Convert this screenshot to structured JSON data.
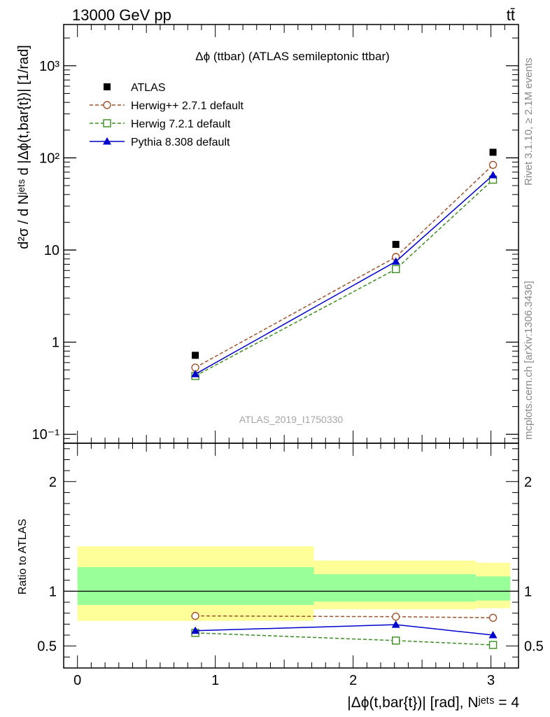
{
  "header": {
    "energy_label": "13000 GeV pp",
    "process_label": "tt̄"
  },
  "side_labels": {
    "rivet": "Rivet 3.1.10, ≥ 2.1M events",
    "mcplots": "mcplots.cern.ch [arXiv:1306.3436]"
  },
  "chart_data": [
    {
      "type": "line",
      "title": "Δϕ (ttbar) (ATLAS semileptonic ttbar)",
      "watermark": "ATLAS_2019_I1750330",
      "ylabel": "d²σ / d Nʲᵉᵗˢ d |Δϕ(t,bar{t})| [1/rad]",
      "yscale": "log",
      "ylim": [
        0.08,
        2800
      ],
      "xlim": [
        -0.1,
        3.2
      ],
      "yticks": [
        {
          "value": 0.1,
          "label": "10⁻¹"
        },
        {
          "value": 1,
          "label": "1"
        },
        {
          "value": 10,
          "label": "10"
        },
        {
          "value": 100,
          "label": "10²"
        },
        {
          "value": 1000,
          "label": "10³"
        }
      ],
      "legend_position": "top-left",
      "series": [
        {
          "name": "ATLAS",
          "color": "#000000",
          "marker": "filled-square",
          "x": [
            0.855,
            2.31,
            3.015
          ],
          "y": [
            0.72,
            11.5,
            115
          ]
        },
        {
          "name": "Herwig++ 2.7.1 default",
          "color": "#a0522d",
          "marker": "open-circle",
          "line": "dashed",
          "x": [
            0.855,
            2.31,
            3.015
          ],
          "y": [
            0.53,
            8.4,
            84
          ]
        },
        {
          "name": "Herwig 7.2.1 default",
          "color": "#3a8e1f",
          "marker": "open-square",
          "line": "dashed",
          "x": [
            0.855,
            2.31,
            3.015
          ],
          "y": [
            0.43,
            6.2,
            58
          ]
        },
        {
          "name": "Pythia 8.308 default",
          "color": "#0000cc",
          "marker": "filled-triangle",
          "line": "solid",
          "x": [
            0.855,
            2.31,
            3.015
          ],
          "y": [
            0.45,
            7.5,
            65
          ]
        }
      ]
    },
    {
      "type": "line",
      "ylabel": "Ratio to ATLAS",
      "xlabel": "|Δϕ(t,bar{t})| [rad], Nʲᵉᵗˢ = 4",
      "ylim": [
        0.3,
        2.35
      ],
      "xlim": [
        -0.1,
        3.2
      ],
      "xticks": [
        0,
        1,
        2,
        3
      ],
      "yticks": [
        0.5,
        1,
        2
      ],
      "reference_line": 1,
      "bands": [
        {
          "x_from": 0.0,
          "x_to": 1.715,
          "outer": [
            0.73,
            1.41
          ],
          "inner": [
            0.875,
            1.22
          ]
        },
        {
          "x_from": 1.715,
          "x_to": 2.89,
          "outer": [
            0.835,
            1.28
          ],
          "inner": [
            0.905,
            1.155
          ]
        },
        {
          "x_from": 2.89,
          "x_to": 3.14,
          "outer": [
            0.845,
            1.26
          ],
          "inner": [
            0.915,
            1.135
          ]
        }
      ],
      "band_colors": {
        "outer": "#ffff99",
        "inner": "#99ff99"
      },
      "series": [
        {
          "name": "Herwig++ 2.7.1 default",
          "color": "#a0522d",
          "marker": "open-circle",
          "line": "dashed",
          "x": [
            0.855,
            2.31,
            3.015
          ],
          "y": [
            0.775,
            0.768,
            0.758
          ]
        },
        {
          "name": "Herwig 7.2.1 default",
          "color": "#3a8e1f",
          "marker": "open-square",
          "line": "dashed",
          "x": [
            0.855,
            2.31,
            3.015
          ],
          "y": [
            0.62,
            0.55,
            0.51
          ]
        },
        {
          "name": "Pythia 8.308 default",
          "color": "#0000cc",
          "marker": "filled-triangle",
          "line": "solid",
          "x": [
            0.855,
            2.31,
            3.015
          ],
          "y": [
            0.64,
            0.695,
            0.6
          ]
        }
      ]
    }
  ]
}
